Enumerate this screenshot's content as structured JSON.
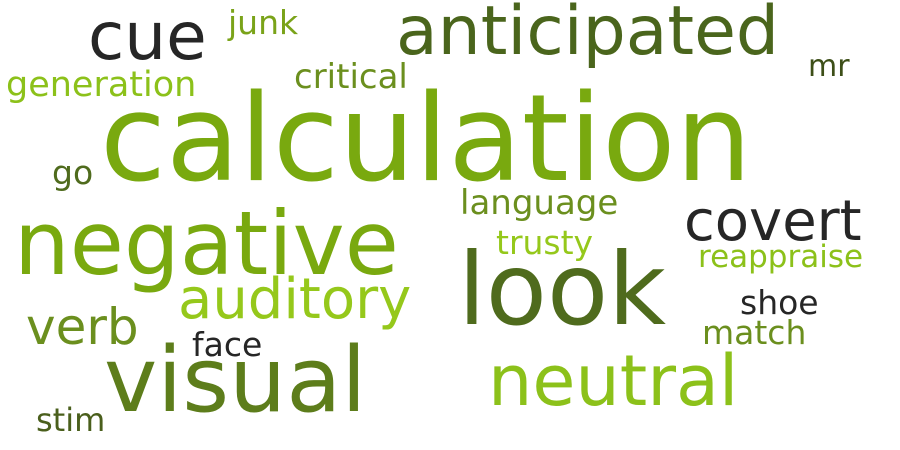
{
  "colors": {
    "background": "#ffffff",
    "palette": [
      "#79a90f",
      "#4f6b1d",
      "#8cc11a",
      "#262626",
      "#6b8f1e",
      "#95c81b"
    ]
  },
  "words": {
    "calculation": {
      "text": "calculation",
      "color": "#79a90f"
    },
    "look": {
      "text": "look",
      "color": "#4f6b1d"
    },
    "negative": {
      "text": "negative",
      "color": "#79a90f"
    },
    "visual": {
      "text": "visual",
      "color": "#5d7d1b"
    },
    "anticipated": {
      "text": "anticipated",
      "color": "#4a651c"
    },
    "neutral": {
      "text": "neutral",
      "color": "#8cc11a"
    },
    "cue": {
      "text": "cue",
      "color": "#262626"
    },
    "auditory": {
      "text": "auditory",
      "color": "#95c81b"
    },
    "covert": {
      "text": "covert",
      "color": "#262626"
    },
    "verb": {
      "text": "verb",
      "color": "#6b8f1e"
    },
    "generation": {
      "text": "generation",
      "color": "#8cc11a"
    },
    "critical": {
      "text": "critical",
      "color": "#6b8f1e"
    },
    "junk": {
      "text": "junk",
      "color": "#7aa319"
    },
    "language": {
      "text": "language",
      "color": "#6b8f1e"
    },
    "trusty": {
      "text": "trusty",
      "color": "#95c81b"
    },
    "reappraise": {
      "text": "reappraise",
      "color": "#8cc11a"
    },
    "shoe": {
      "text": "shoe",
      "color": "#262626"
    },
    "match": {
      "text": "match",
      "color": "#6b8f1e"
    },
    "face": {
      "text": "face",
      "color": "#262626"
    },
    "go": {
      "text": "go",
      "color": "#4f6b1d"
    },
    "mr": {
      "text": "mr",
      "color": "#3d4f18"
    },
    "stim": {
      "text": "stim",
      "color": "#4a5f1c"
    }
  }
}
